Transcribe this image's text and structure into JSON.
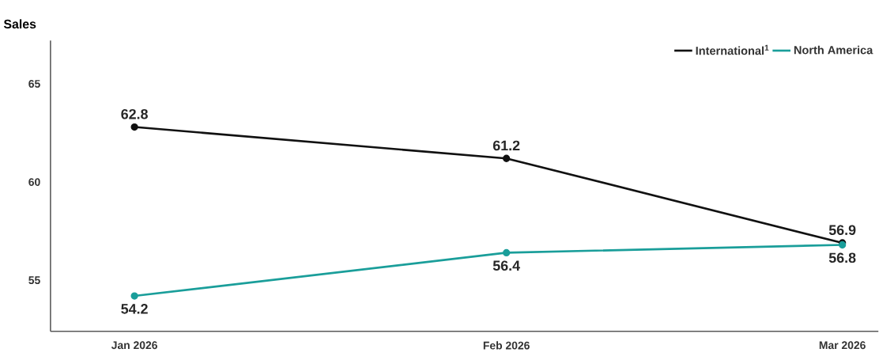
{
  "chart_data": {
    "type": "line",
    "ylabel": "Sales",
    "x": [
      "2026-01-01",
      "2026-02-01",
      "2026-03-01"
    ],
    "xlim": [
      "2025-12-25",
      "2026-03-04"
    ],
    "xticks": [
      {
        "value": "2026-01-01",
        "label": "Jan 2026"
      },
      {
        "value": "2026-02-01",
        "label": "Feb 2026"
      },
      {
        "value": "2026-03-01",
        "label": "Mar 2026"
      }
    ],
    "ylim": [
      52.4,
      67.2
    ],
    "yticks": [
      55,
      60,
      65
    ],
    "series": [
      {
        "name": "International$^{1}$",
        "color": "#111111",
        "values": [
          62.8,
          61.2,
          56.9
        ]
      },
      {
        "name": "North America",
        "color": "#1a9e9a",
        "values": [
          54.2,
          56.4,
          56.8
        ]
      }
    ],
    "data_labels": true,
    "legend": "top right",
    "grid": false,
    "marker": "circle",
    "line_style": "solid"
  }
}
